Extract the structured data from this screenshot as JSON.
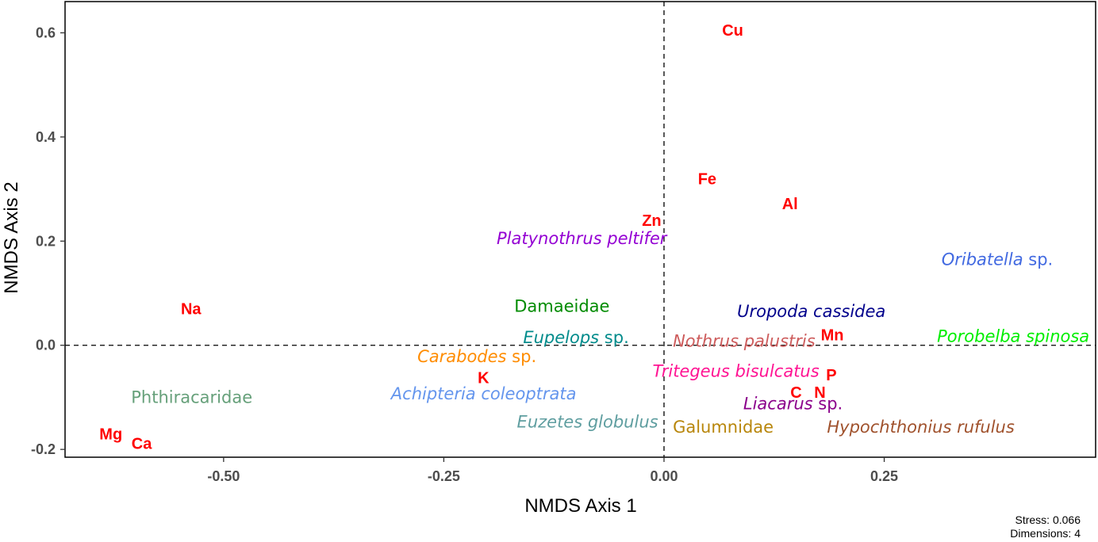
{
  "chart_data": {
    "type": "scatter",
    "xlabel": "NMDS Axis 1",
    "ylabel": "NMDS Axis 2",
    "xlim": [
      -0.68,
      0.49
    ],
    "ylim": [
      -0.215,
      0.66
    ],
    "x_ticks": [
      {
        "value": -0.5,
        "label": "-0.50"
      },
      {
        "value": -0.25,
        "label": "-0.25"
      },
      {
        "value": 0.0,
        "label": "0.00"
      },
      {
        "value": 0.25,
        "label": "0.25"
      }
    ],
    "y_ticks": [
      {
        "value": -0.2,
        "label": "-0.2"
      },
      {
        "value": 0.0,
        "label": "0.0"
      },
      {
        "value": 0.2,
        "label": "0.2"
      },
      {
        "value": 0.4,
        "label": "0.4"
      },
      {
        "value": 0.6,
        "label": "0.6"
      }
    ],
    "reference_lines": {
      "x": 0,
      "y": 0,
      "style": "dashed"
    },
    "grid": false,
    "species": [
      {
        "name": "Platynothrus peltifer",
        "parts": [
          {
            "text": "Platynothrus peltifer",
            "italic": true
          }
        ],
        "x": -0.19,
        "y": 0.205,
        "color": "#9400d3"
      },
      {
        "name": "Oribatella sp.",
        "parts": [
          {
            "text": "Oribatella",
            "italic": true
          },
          {
            "text": " sp.",
            "italic": false
          }
        ],
        "x": 0.315,
        "y": 0.165,
        "color": "#4169e1"
      },
      {
        "name": "Damaeidae",
        "parts": [
          {
            "text": "Damaeidae",
            "italic": false
          }
        ],
        "x": -0.17,
        "y": 0.075,
        "color": "#008b00"
      },
      {
        "name": "Uropoda cassidea",
        "parts": [
          {
            "text": "Uropoda cassidea",
            "italic": true
          }
        ],
        "x": 0.083,
        "y": 0.065,
        "color": "#00008b"
      },
      {
        "name": "Eupelops sp.",
        "parts": [
          {
            "text": "Eupelops",
            "italic": true
          },
          {
            "text": " sp.",
            "italic": false
          }
        ],
        "x": -0.16,
        "y": 0.015,
        "color": "#008b8b"
      },
      {
        "name": "Nothrus palustris",
        "parts": [
          {
            "text": "Nothrus palustris",
            "italic": true
          }
        ],
        "x": 0.01,
        "y": 0.008,
        "color": "#cd5c5c"
      },
      {
        "name": "Porobelba spinosa",
        "parts": [
          {
            "text": "Porobelba spinosa",
            "italic": true
          }
        ],
        "x": 0.31,
        "y": 0.017,
        "color": "#00ee00"
      },
      {
        "name": "Carabodes sp.",
        "parts": [
          {
            "text": "Carabodes",
            "italic": true
          },
          {
            "text": " sp.",
            "italic": false
          }
        ],
        "x": -0.28,
        "y": -0.022,
        "color": "#ff8c00"
      },
      {
        "name": "Tritegeus bisulcatus",
        "parts": [
          {
            "text": "Tritegeus bisulcatus",
            "italic": true
          }
        ],
        "x": -0.013,
        "y": -0.05,
        "color": "#ff1493"
      },
      {
        "name": "Achipteria coleoptrata",
        "parts": [
          {
            "text": "Achipteria coleoptrata",
            "italic": true
          }
        ],
        "x": -0.31,
        "y": -0.093,
        "color": "#6495ed"
      },
      {
        "name": "Phthiracaridae",
        "parts": [
          {
            "text": "Phthiracaridae",
            "italic": false
          }
        ],
        "x": -0.605,
        "y": -0.1,
        "color": "#66a07a"
      },
      {
        "name": "Liacarus sp.",
        "parts": [
          {
            "text": "Liacarus",
            "italic": true
          },
          {
            "text": " sp.",
            "italic": false
          }
        ],
        "x": 0.09,
        "y": -0.112,
        "color": "#8b008b"
      },
      {
        "name": "Euzetes globulus",
        "parts": [
          {
            "text": "Euzetes globulus",
            "italic": true
          }
        ],
        "x": -0.167,
        "y": -0.147,
        "color": "#5f9ea0"
      },
      {
        "name": "Galumnidae",
        "parts": [
          {
            "text": "Galumnidae",
            "italic": false
          }
        ],
        "x": 0.01,
        "y": -0.157,
        "color": "#b8860b"
      },
      {
        "name": "Hypochthonius rufulus",
        "parts": [
          {
            "text": "Hypochthonius rufulus",
            "italic": true
          }
        ],
        "x": 0.185,
        "y": -0.157,
        "color": "#a0522d"
      }
    ],
    "environment": [
      {
        "label": "Cu",
        "x": 0.078,
        "y": 0.605
      },
      {
        "label": "Fe",
        "x": 0.049,
        "y": 0.32
      },
      {
        "label": "Al",
        "x": 0.143,
        "y": 0.272
      },
      {
        "label": "Zn",
        "x": -0.014,
        "y": 0.24
      },
      {
        "label": "Na",
        "x": -0.537,
        "y": 0.07
      },
      {
        "label": "Mn",
        "x": 0.191,
        "y": 0.02
      },
      {
        "label": "K",
        "x": -0.205,
        "y": -0.062
      },
      {
        "label": "P",
        "x": 0.19,
        "y": -0.057
      },
      {
        "label": "C",
        "x": 0.15,
        "y": -0.09
      },
      {
        "label": "N",
        "x": 0.177,
        "y": -0.09
      },
      {
        "label": "Mg",
        "x": -0.628,
        "y": -0.17
      },
      {
        "label": "Ca",
        "x": -0.593,
        "y": -0.188
      }
    ]
  },
  "stress_note": "Stress: 0.066",
  "dimensions_note": "Dimensions: 4"
}
